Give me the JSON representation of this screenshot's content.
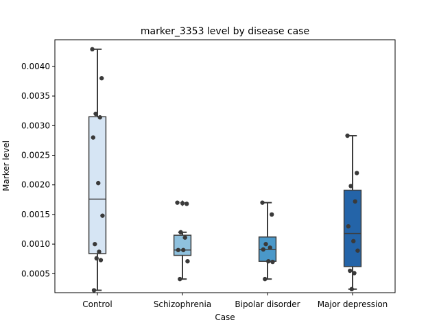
{
  "chart_data": {
    "type": "box",
    "title": "marker_3353 level by disease case",
    "xlabel": "Case",
    "ylabel": "Marker level",
    "ylim": [
      0.00018,
      0.00445
    ],
    "yticks": [
      "0.0005",
      "0.0010",
      "0.0015",
      "0.0020",
      "0.0025",
      "0.0030",
      "0.0035",
      "0.0040"
    ],
    "ytick_values": [
      0.0005,
      0.001,
      0.0015,
      0.002,
      0.0025,
      0.003,
      0.0035,
      0.004
    ],
    "grid": false,
    "categories": [
      "Control",
      "Schizophrenia",
      "Bipolar disorder",
      "Major depression"
    ],
    "boxes": [
      {
        "category": "Control",
        "color": "#d6e5f4",
        "whisker_low": 0.00022,
        "q1": 0.00084,
        "median": 0.00176,
        "q3": 0.00315,
        "whisker_high": 0.00429,
        "outliers": [],
        "points": [
          0.00429,
          0.0038,
          0.0032,
          0.00314,
          0.0028,
          0.00203,
          0.00148,
          0.001,
          0.00087,
          0.00076,
          0.00073,
          0.00022
        ]
      },
      {
        "category": "Schizophrenia",
        "color": "#8fc1de",
        "whisker_low": 0.00041,
        "q1": 0.00081,
        "median": 0.0009,
        "q3": 0.00115,
        "whisker_high": 0.0012,
        "outliers": [
          0.0017,
          0.00168
        ],
        "points": [
          0.0017,
          0.00168,
          0.0012,
          0.00111,
          0.0009,
          0.0009,
          0.00071,
          0.00041
        ]
      },
      {
        "category": "Bipolar disorder",
        "color": "#4a98c9",
        "whisker_low": 0.00041,
        "q1": 0.00071,
        "median": 0.00091,
        "q3": 0.00112,
        "whisker_high": 0.0017,
        "outliers": [],
        "points": [
          0.0017,
          0.0015,
          0.001,
          0.00094,
          0.00091,
          0.00071,
          0.0007,
          0.00041
        ]
      },
      {
        "category": "Major depression",
        "color": "#2464a8",
        "whisker_low": 0.00024,
        "q1": 0.00062,
        "median": 0.00118,
        "q3": 0.00191,
        "whisker_high": 0.00283,
        "outliers": [],
        "points": [
          0.00283,
          0.0022,
          0.00198,
          0.00172,
          0.0013,
          0.00105,
          0.00089,
          0.00055,
          0.00051,
          0.00024
        ]
      }
    ],
    "point_color": "#3a3a3a",
    "line_color": "#3d3d3d"
  }
}
